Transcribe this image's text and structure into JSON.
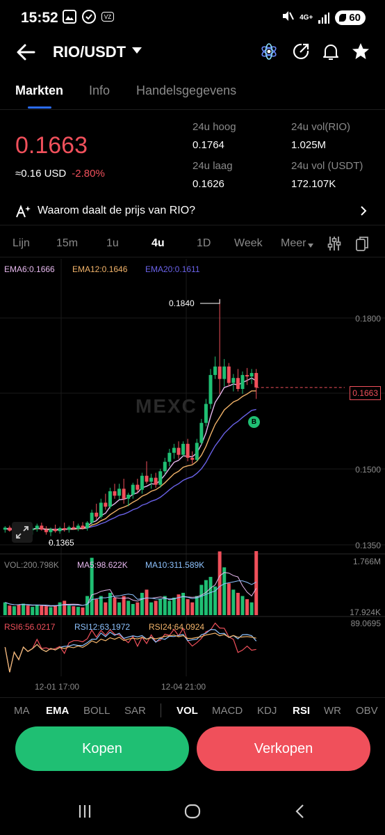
{
  "status_bar": {
    "time": "15:52",
    "network": "4G+",
    "battery": "60",
    "small_icon_text": "VZ"
  },
  "header": {
    "pair": "RIO/USDT"
  },
  "tabs": [
    {
      "label": "Markten",
      "active": true
    },
    {
      "label": "Info",
      "active": false
    },
    {
      "label": "Handelsgegevens",
      "active": false
    }
  ],
  "ticker": {
    "price": "0.1663",
    "usd": "≈0.16 USD",
    "change": "-2.80%",
    "high_label": "24u hoog",
    "high": "0.1764",
    "low_label": "24u laag",
    "low": "0.1626",
    "vol_rio_label": "24u vol(RIO)",
    "vol_rio": "1.025M",
    "vol_usdt_label": "24u vol (USDT)",
    "vol_usdt": "172.107K"
  },
  "why": {
    "text": "Waarom daalt de prijs van RIO?"
  },
  "timeframes": [
    {
      "label": "Lijn",
      "active": false
    },
    {
      "label": "15m",
      "active": false
    },
    {
      "label": "1u",
      "active": false
    },
    {
      "label": "4u",
      "active": true
    },
    {
      "label": "1D",
      "active": false
    },
    {
      "label": "Week",
      "active": false
    },
    {
      "label": "Meer",
      "active": false
    }
  ],
  "chart": {
    "ema_labels": [
      "EMA6:0.1666",
      "EMA12:0.1646",
      "EMA20:0.1611"
    ],
    "price_axis": [
      "0.1800",
      "0.1500",
      "0.1350"
    ],
    "high_marker": "0.1840",
    "low_marker": "0.1365",
    "last_price_tag": "0.1663",
    "b_marker": "B",
    "watermark": "MEXC",
    "vol_labels": [
      "VOL:200.798K",
      "MA5:98.622K",
      "MA10:311.589K"
    ],
    "vol_axis": [
      "1.766M",
      "17.924K"
    ],
    "rsi_labels": [
      "RSI6:56.0217",
      "RSI12:63.1972",
      "RSI24:64.0924"
    ],
    "rsi_axis": "89.0695",
    "time_axis": [
      "12-01 17:00",
      "12-04 21:00"
    ],
    "colors": {
      "up": "#1fbf73",
      "down": "#f0505b",
      "ema6": "#e7b9ef",
      "ema12": "#f3b46a",
      "ema20": "#6a62e8"
    }
  },
  "chart_data": {
    "type": "candlestick",
    "ylim": [
      0.1335,
      0.1865
    ],
    "candles": [
      [
        0.1378,
        0.1385,
        0.1372,
        0.1382
      ],
      [
        0.1382,
        0.1386,
        0.1374,
        0.1376
      ],
      [
        0.1376,
        0.1383,
        0.137,
        0.138
      ],
      [
        0.138,
        0.1388,
        0.1372,
        0.1374
      ],
      [
        0.1374,
        0.1385,
        0.1368,
        0.1382
      ],
      [
        0.1382,
        0.139,
        0.1374,
        0.1377
      ],
      [
        0.1377,
        0.1384,
        0.1368,
        0.138
      ],
      [
        0.138,
        0.139,
        0.1374,
        0.1386
      ],
      [
        0.1386,
        0.1392,
        0.1376,
        0.1378
      ],
      [
        0.1378,
        0.1385,
        0.1368,
        0.1373
      ],
      [
        0.1373,
        0.1382,
        0.1365,
        0.1379
      ],
      [
        0.1379,
        0.1388,
        0.1372,
        0.1375
      ],
      [
        0.1375,
        0.1384,
        0.137,
        0.1381
      ],
      [
        0.1381,
        0.1392,
        0.1374,
        0.1378
      ],
      [
        0.1378,
        0.1386,
        0.1372,
        0.1383
      ],
      [
        0.1383,
        0.1395,
        0.1378,
        0.138
      ],
      [
        0.138,
        0.139,
        0.1375,
        0.1386
      ],
      [
        0.1386,
        0.1393,
        0.1378,
        0.1381
      ],
      [
        0.1381,
        0.1395,
        0.1376,
        0.1392
      ],
      [
        0.1392,
        0.1418,
        0.1388,
        0.1412
      ],
      [
        0.1412,
        0.143,
        0.1398,
        0.1404
      ],
      [
        0.1404,
        0.144,
        0.14,
        0.1432
      ],
      [
        0.1432,
        0.145,
        0.1418,
        0.1424
      ],
      [
        0.1424,
        0.1462,
        0.142,
        0.1455
      ],
      [
        0.1455,
        0.147,
        0.144,
        0.1446
      ],
      [
        0.1446,
        0.147,
        0.1438,
        0.146
      ],
      [
        0.146,
        0.148,
        0.143,
        0.144
      ],
      [
        0.144,
        0.1452,
        0.1425,
        0.1448
      ],
      [
        0.1448,
        0.1472,
        0.144,
        0.1468
      ],
      [
        0.1468,
        0.148,
        0.1452,
        0.1458
      ],
      [
        0.1458,
        0.1492,
        0.145,
        0.1486
      ],
      [
        0.1486,
        0.1515,
        0.147,
        0.1474
      ],
      [
        0.1474,
        0.149,
        0.146,
        0.1482
      ],
      [
        0.1482,
        0.1492,
        0.1462,
        0.1468
      ],
      [
        0.1468,
        0.15,
        0.1462,
        0.1495
      ],
      [
        0.1495,
        0.1522,
        0.1488,
        0.1514
      ],
      [
        0.1514,
        0.154,
        0.1505,
        0.1532
      ],
      [
        0.1532,
        0.155,
        0.152,
        0.1542
      ],
      [
        0.1542,
        0.1555,
        0.152,
        0.1528
      ],
      [
        0.1528,
        0.1555,
        0.1524,
        0.155
      ],
      [
        0.155,
        0.156,
        0.1515,
        0.1522
      ],
      [
        0.1522,
        0.1535,
        0.151,
        0.1518
      ],
      [
        0.1518,
        0.156,
        0.1515,
        0.1552
      ],
      [
        0.1552,
        0.16,
        0.1548,
        0.1592
      ],
      [
        0.1592,
        0.164,
        0.1585,
        0.163
      ],
      [
        0.163,
        0.17,
        0.162,
        0.1688
      ],
      [
        0.1688,
        0.1725,
        0.168,
        0.1705
      ],
      [
        0.1705,
        0.184,
        0.165,
        0.168
      ],
      [
        0.168,
        0.172,
        0.1665,
        0.1705
      ],
      [
        0.1705,
        0.1712,
        0.1665,
        0.1672
      ],
      [
        0.1672,
        0.169,
        0.1655,
        0.1682
      ],
      [
        0.1682,
        0.17,
        0.1655,
        0.166
      ],
      [
        0.166,
        0.1695,
        0.165,
        0.1688
      ],
      [
        0.1688,
        0.1702,
        0.1668,
        0.1685
      ],
      [
        0.1685,
        0.17,
        0.167,
        0.1692
      ],
      [
        0.1692,
        0.17,
        0.164,
        0.1663
      ]
    ],
    "ema6": [
      0.138,
      0.1379,
      0.1379,
      0.1378,
      0.1379,
      0.1378,
      0.1379,
      0.1381,
      0.138,
      0.1378,
      0.1378,
      0.1377,
      0.1378,
      0.1378,
      0.138,
      0.138,
      0.1381,
      0.1381,
      0.1385,
      0.1392,
      0.1396,
      0.1406,
      0.1411,
      0.1424,
      0.143,
      0.1438,
      0.1439,
      0.1442,
      0.1449,
      0.1452,
      0.1462,
      0.1465,
      0.147,
      0.1469,
      0.1477,
      0.1488,
      0.1501,
      0.1513,
      0.1517,
      0.1526,
      0.1525,
      0.1524,
      0.1532,
      0.1549,
      0.1572,
      0.1605,
      0.1633,
      0.1647,
      0.1663,
      0.1666,
      0.167,
      0.1668,
      0.1673,
      0.1677,
      0.1682,
      0.1676
    ],
    "ema12": [
      0.138,
      0.1379,
      0.1379,
      0.1379,
      0.1379,
      0.1379,
      0.1379,
      0.138,
      0.138,
      0.1379,
      0.1379,
      0.1378,
      0.1379,
      0.1379,
      0.1379,
      0.1379,
      0.138,
      0.138,
      0.1382,
      0.1387,
      0.139,
      0.1396,
      0.14,
      0.1408,
      0.1414,
      0.142,
      0.1423,
      0.1427,
      0.1433,
      0.1438,
      0.1445,
      0.1449,
      0.1455,
      0.1458,
      0.1464,
      0.1472,
      0.1481,
      0.149,
      0.1495,
      0.1503,
      0.1506,
      0.1508,
      0.1515,
      0.1527,
      0.1545,
      0.1568,
      0.1589,
      0.1603,
      0.1618,
      0.1626,
      0.1634,
      0.1638,
      0.1645,
      0.165,
      0.1656,
      0.1656
    ],
    "ema20": [
      0.138,
      0.138,
      0.1379,
      0.1379,
      0.1379,
      0.1379,
      0.1379,
      0.138,
      0.138,
      0.1379,
      0.1379,
      0.1379,
      0.1379,
      0.1379,
      0.1379,
      0.1379,
      0.138,
      0.138,
      0.1381,
      0.1384,
      0.1386,
      0.139,
      0.1393,
      0.1398,
      0.1402,
      0.1407,
      0.1409,
      0.1413,
      0.1418,
      0.1421,
      0.1427,
      0.143,
      0.1435,
      0.1438,
      0.1443,
      0.145,
      0.1458,
      0.1465,
      0.147,
      0.1477,
      0.1481,
      0.1484,
      0.1491,
      0.15,
      0.1513,
      0.153,
      0.1546,
      0.1558,
      0.1571,
      0.158,
      0.1589,
      0.1595,
      0.1603,
      0.161,
      0.1617,
      0.1619
    ],
    "volume": [
      40,
      30,
      28,
      34,
      36,
      30,
      26,
      32,
      30,
      28,
      25,
      30,
      40,
      45,
      30,
      28,
      26,
      24,
      60,
      180,
      50,
      60,
      40,
      70,
      55,
      40,
      60,
      45,
      35,
      40,
      70,
      80,
      40,
      45,
      50,
      60,
      45,
      55,
      65,
      70,
      50,
      40,
      60,
      95,
      110,
      120,
      90,
      200,
      150,
      100,
      80,
      70,
      60,
      50,
      40,
      201
    ]
  }
}
